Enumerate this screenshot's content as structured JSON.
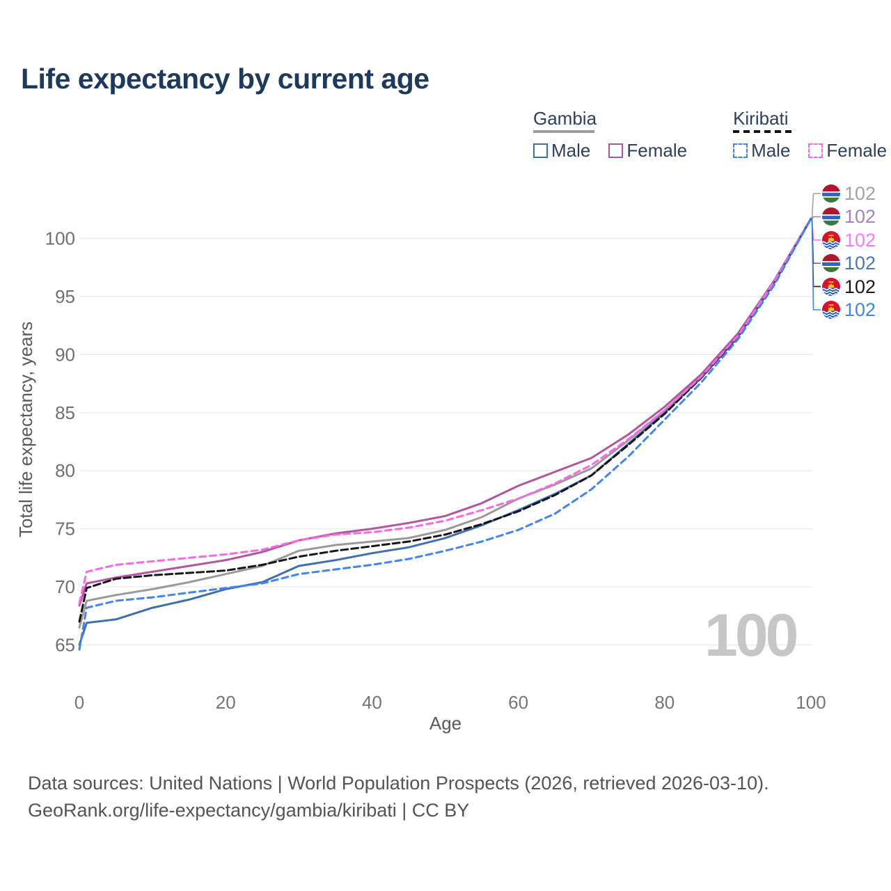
{
  "title": "Life expectancy by current age",
  "legend": {
    "groups": [
      {
        "label": "Gambia",
        "underline_style": "solid",
        "underline_color": "#9e9e9e",
        "items": [
          {
            "label": "Male",
            "color": "#3e6fb0",
            "dash": false
          },
          {
            "label": "Female",
            "color": "#b1569e",
            "dash": false
          }
        ]
      },
      {
        "label": "Kiribati",
        "underline_style": "dashed",
        "underline_color": "#141414",
        "items": [
          {
            "label": "Male",
            "color": "#4285f0",
            "dash": true
          },
          {
            "label": "Female",
            "color": "#fb68e5",
            "dash": true
          }
        ]
      }
    ]
  },
  "chart_data": {
    "type": "line",
    "title": "Life expectancy by current age",
    "xlabel": "Age",
    "ylabel": "Total life expectancy, years",
    "x_ticks": [
      0,
      20,
      40,
      60,
      80,
      100
    ],
    "y_ticks": [
      65,
      70,
      75,
      80,
      85,
      90,
      95,
      100
    ],
    "xlim": [
      0,
      100
    ],
    "ylim": [
      64,
      103
    ],
    "grid": "horizontal",
    "legend_position": "top-right",
    "watermark": "100",
    "x": [
      0,
      1,
      5,
      10,
      15,
      20,
      25,
      30,
      35,
      40,
      45,
      50,
      55,
      60,
      65,
      70,
      75,
      80,
      85,
      90,
      95,
      100
    ],
    "series": [
      {
        "id": "gambia-total",
        "name": "Gambia Total",
        "country": "Gambia",
        "flag_icon": "gambia-flag-icon",
        "color": "#9a9a9a",
        "dash": "",
        "label_color": "#a3a3a3",
        "end_label": "102",
        "values": [
          66.5,
          68.8,
          69.3,
          69.8,
          70.4,
          71.1,
          71.8,
          73.1,
          73.6,
          73.9,
          74.2,
          74.9,
          76.0,
          77.6,
          78.8,
          80.2,
          82.6,
          85.2,
          88.1,
          91.6,
          96.3,
          101.7
        ]
      },
      {
        "id": "gambia-female",
        "name": "Gambia Female",
        "country": "Gambia",
        "flag_icon": "gambia-flag-icon",
        "color": "#b1569e",
        "dash": "",
        "label_color": "#a97fbe",
        "end_label": "102",
        "values": [
          68.4,
          70.3,
          70.8,
          71.3,
          71.8,
          72.3,
          73.0,
          74.0,
          74.6,
          75.0,
          75.5,
          76.1,
          77.2,
          78.7,
          79.9,
          81.1,
          83.1,
          85.5,
          88.3,
          91.8,
          96.4,
          101.7
        ]
      },
      {
        "id": "kiribati-female",
        "name": "Kiribati Female",
        "country": "Kiribati",
        "flag_icon": "kiribati-flag-icon",
        "color": "#fb68e5",
        "dash": "9 6",
        "label_color": "#ff7af0",
        "end_label": "102",
        "values": [
          68.6,
          71.3,
          71.9,
          72.2,
          72.5,
          72.8,
          73.2,
          74.0,
          74.5,
          74.7,
          75.1,
          75.7,
          76.6,
          77.6,
          78.9,
          80.5,
          82.7,
          85.2,
          88.1,
          91.6,
          96.3,
          101.7
        ]
      },
      {
        "id": "gambia-male",
        "name": "Gambia Male",
        "country": "Gambia",
        "flag_icon": "gambia-flag-icon",
        "color": "#3e6fb0",
        "dash": "",
        "label_color": "#4a77bb",
        "end_label": "102",
        "values": [
          65.0,
          66.9,
          67.2,
          68.2,
          68.9,
          69.8,
          70.4,
          71.8,
          72.3,
          72.9,
          73.4,
          74.2,
          75.3,
          76.6,
          78.0,
          79.6,
          82.3,
          85.0,
          88.0,
          91.5,
          96.2,
          101.7
        ]
      },
      {
        "id": "kiribati-total",
        "name": "Kiribati Total",
        "country": "Kiribati",
        "flag_icon": "kiribati-flag-icon",
        "color": "#161616",
        "dash": "10 5",
        "label_color": "#1a1a1a",
        "end_label": "102",
        "values": [
          67.0,
          69.9,
          70.7,
          71.0,
          71.2,
          71.4,
          71.9,
          72.6,
          73.1,
          73.5,
          73.9,
          74.5,
          75.4,
          76.5,
          77.9,
          79.6,
          82.2,
          84.9,
          88.0,
          91.5,
          96.2,
          101.7
        ]
      },
      {
        "id": "kiribati-male",
        "name": "Kiribati Male",
        "country": "Kiribati",
        "flag_icon": "kiribati-flag-icon",
        "color": "#4285f0",
        "dash": "9 6",
        "label_color": "#3d85f2",
        "end_label": "102",
        "values": [
          64.6,
          68.2,
          68.8,
          69.1,
          69.5,
          69.9,
          70.3,
          71.1,
          71.5,
          71.9,
          72.4,
          73.1,
          73.9,
          74.9,
          76.3,
          78.4,
          81.2,
          84.4,
          87.6,
          91.3,
          96.0,
          101.7
        ]
      }
    ]
  },
  "footer": {
    "line1": "Data sources: United Nations | World Population Prospects (2026, retrieved 2026-03-10).",
    "line2": "GeoRank.org/life-expectancy/gambia/kiribati | CC BY"
  }
}
